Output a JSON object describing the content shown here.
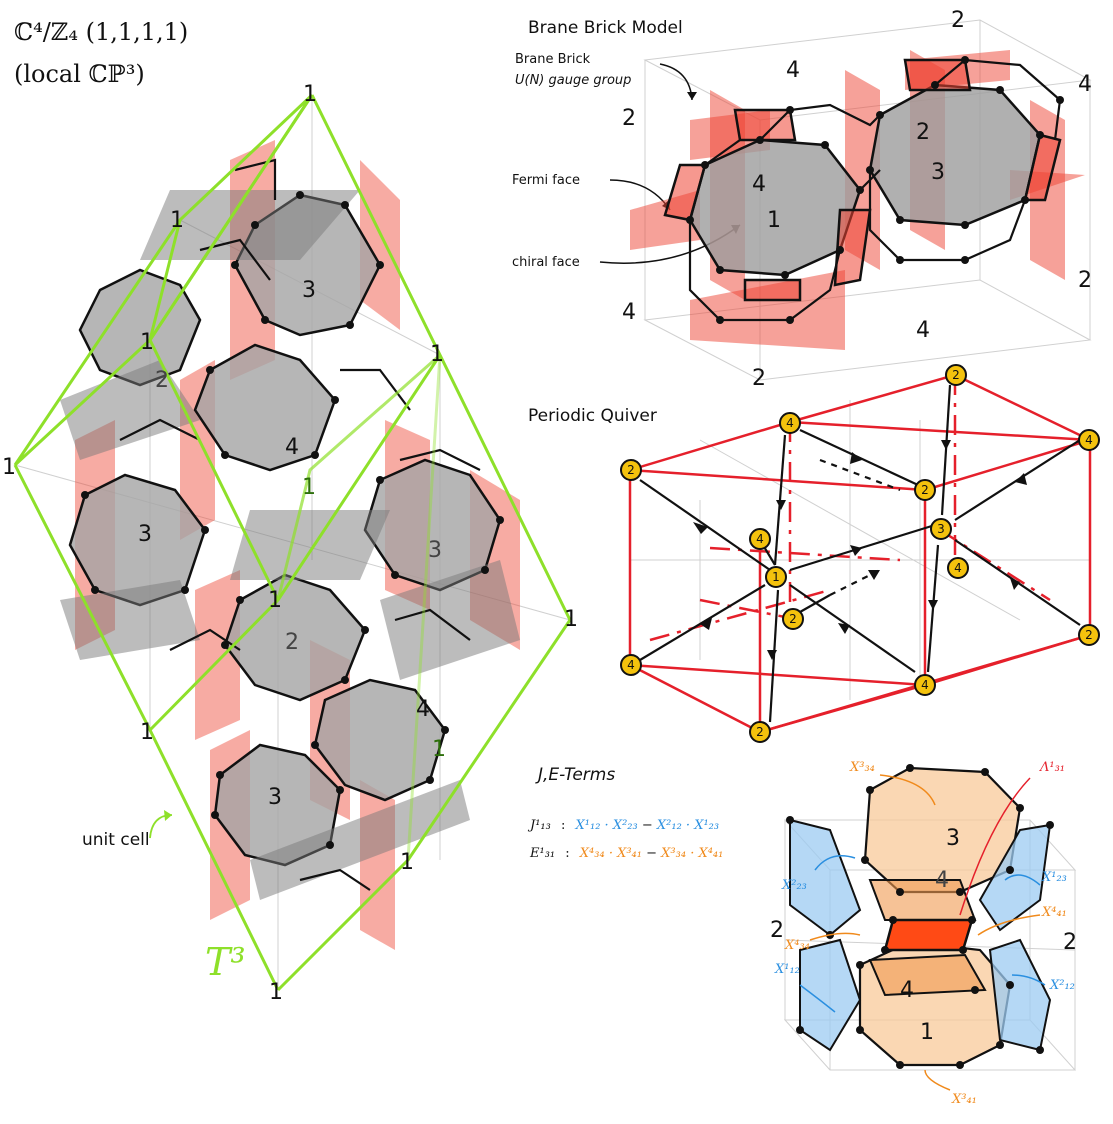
{
  "title": {
    "line1": "ℂ⁴/ℤ₄ (1,1,1,1)",
    "line2": "(local ℂℙ³)"
  },
  "left": {
    "unit_cell_label": "unit cell",
    "torus_label": "T³",
    "face_labels": [
      "3",
      "2",
      "4",
      "1",
      "3",
      "3",
      "2",
      "4",
      "1",
      "3"
    ],
    "corner_labels": [
      "1",
      "1",
      "1",
      "1",
      "1",
      "1",
      "1",
      "1",
      "1",
      "1",
      "1"
    ]
  },
  "brane_brick": {
    "title": "Brane Brick Model",
    "gauge_label_1": "Brane Brick",
    "gauge_label_2": "U(N) gauge group",
    "fermi_label": "Fermi face",
    "chiral_label": "chiral face",
    "numbers": [
      "2",
      "4",
      "4",
      "2",
      "2",
      "3",
      "4",
      "1",
      "2",
      "4",
      "4",
      "2",
      "2"
    ]
  },
  "quiver": {
    "title": "Periodic Quiver",
    "nodes": [
      "2",
      "4",
      "4",
      "2",
      "2",
      "4",
      "1",
      "3",
      "4",
      "2",
      "2",
      "4",
      "4",
      "2"
    ]
  },
  "terms": {
    "title": "J,E-Terms",
    "j_lhs": "J¹₁₃",
    "j_rhs_a": "X¹₁₂ · X²₂₃",
    "j_minus": "−",
    "j_rhs_b": "X²₁₂ · X¹₂₃",
    "e_lhs": "E¹₃₁",
    "e_rhs_a": "X⁴₃₄ · X³₄₁",
    "e_rhs_b": "X³₃₄ · X⁴₄₁",
    "colon": ":"
  },
  "detail": {
    "face_numbers": [
      "3",
      "4",
      "4",
      "1",
      "2",
      "2"
    ],
    "labels": {
      "x34_3": "X³₃₄",
      "lambda": "Λ¹₃₁",
      "x23_2": "X²₂₃",
      "x23_1": "X¹₂₃",
      "x41_4": "X⁴₄₁",
      "x34_4": "X⁴₃₄",
      "x12_1": "X¹₁₂",
      "x12_2": "X²₁₂",
      "x41_3": "X³₄₁"
    }
  },
  "colors": {
    "green": "#8ee02a",
    "red": "#ee4433",
    "grey": "#9c9c9c",
    "node": "#f4c20d",
    "blue": "#2a8fe0",
    "orange": "#f08a1c"
  }
}
